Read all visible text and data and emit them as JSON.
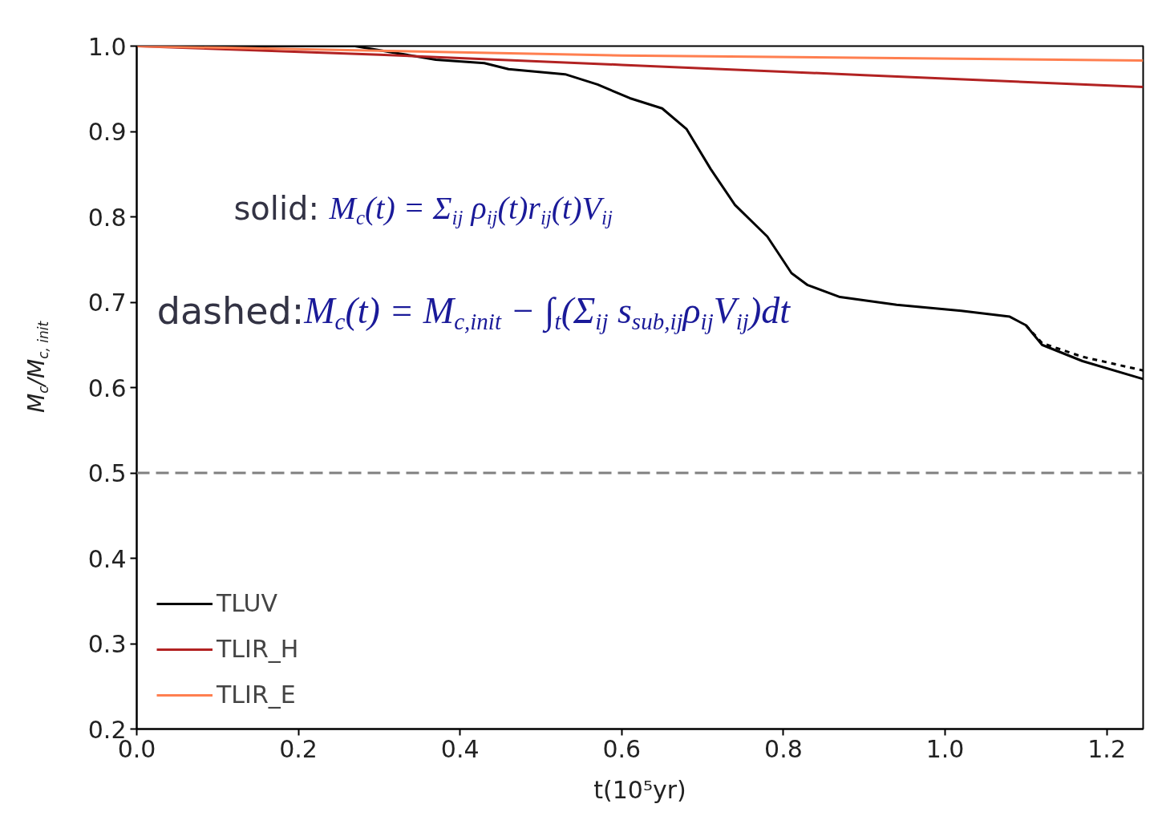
{
  "chart_data": {
    "type": "line",
    "xlabel": "t(10⁵yr)",
    "ylabel": "M$_{c}$/M$_{c, init}$",
    "xlim": [
      0.0,
      1.245
    ],
    "ylim": [
      0.2,
      1.0
    ],
    "xticks": [
      {
        "value": 0.0,
        "label": "0.0"
      },
      0.2,
      0.4,
      0.6,
      0.8,
      {
        "value": 1.0,
        "label": "1.0"
      },
      1.2
    ],
    "yticks": [
      0.2,
      0.3,
      0.4,
      0.5,
      0.6,
      0.7,
      0.8,
      0.9,
      {
        "value": 1.0,
        "label": "1.0"
      }
    ],
    "grid": false,
    "legend": "bottom left",
    "series": [
      {
        "name": "TLUV",
        "color": "#000000",
        "line_style": "solid",
        "x": [
          0,
          0.27,
          0.37,
          0.43,
          0.46,
          0.53,
          0.57,
          0.61,
          0.65,
          0.68,
          0.71,
          0.74,
          0.78,
          0.81,
          0.83,
          0.87,
          0.94,
          1.02,
          1.08,
          1.1,
          1.12,
          1.17,
          1.245
        ],
        "values": [
          1.0,
          1.0,
          0.984,
          0.98,
          0.973,
          0.967,
          0.955,
          0.939,
          0.927,
          0.903,
          0.856,
          0.814,
          0.777,
          0.734,
          0.72,
          0.706,
          0.697,
          0.69,
          0.683,
          0.673,
          0.65,
          0.631,
          0.61
        ]
      },
      {
        "name": "TLIR_H",
        "color": "#b22222",
        "line_style": "solid",
        "x": [
          0,
          0.3,
          0.6,
          0.9,
          1.245
        ],
        "values": [
          1.0,
          0.99,
          0.978,
          0.966,
          0.952
        ]
      },
      {
        "name": "TLIR_E",
        "color": "#ff7f50",
        "line_style": "solid",
        "x": [
          0,
          0.6,
          1.245
        ],
        "values": [
          1.0,
          0.989,
          0.983
        ]
      },
      {
        "color": "#000000",
        "line_style": "dashed",
        "x": [
          1.1,
          1.12,
          1.17,
          1.245
        ],
        "values": [
          0.673,
          0.652,
          0.636,
          0.62
        ]
      }
    ],
    "ref_lines": [
      {
        "axis": "y",
        "value": 0.5,
        "color": "#808080",
        "line_style": "dashed"
      }
    ],
    "annotations": [
      "solid: M$_{c}$(t) = Σ$_{ij}$ ρ$_{ij}$(t)r$_{ij}$(t)V$_{ij}$",
      "dashed:M$_{c}$(t) = M$_{c,init}$ − ∫$_{t}$(Σ$_{ij}$ s$_{sub,ij}$ρ$_{ij}$V$_{ij}$)dt"
    ]
  }
}
